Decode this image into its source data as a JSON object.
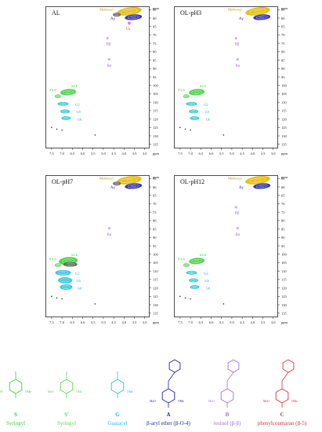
{
  "figure": {
    "colors": {
      "S": "#39d23a",
      "S_prime": "#5bd85b",
      "G": "#25c3dc",
      "A": "#1e1eb4",
      "B": "#a86ed6",
      "C": "#e0303a",
      "methoxyl": "#e6b800",
      "impurity": "#555555"
    },
    "x_axis": {
      "unit": "ppm",
      "ticks": [
        "7.5",
        "7.0",
        "6.5",
        "6.0",
        "5.5",
        "5.0",
        "4.5",
        "4.0",
        "3.5",
        "3.0"
      ]
    },
    "y_axis": {
      "unit": "ppm",
      "ticks": [
        "55",
        "60",
        "65",
        "70",
        "75",
        "80",
        "85",
        "90",
        "95",
        "100",
        "105",
        "110",
        "115",
        "120",
        "125",
        "130",
        "135"
      ]
    },
    "panels": [
      {
        "title": "AL",
        "cross_peak_labels": {
          "methoxyl": "Methoxyl",
          "A": "Aγ",
          "C": "Cγ",
          "B_beta": "Bβ",
          "B_alpha": "Bα",
          "S_prime": "S'2,6",
          "S": "S2,6",
          "G2": "G2",
          "G5": "G5",
          "G6": "G6"
        }
      },
      {
        "title": "OL-pH3",
        "cross_peak_labels": {
          "methoxyl": "Methoxyl",
          "A": "Aγ",
          "B_beta": "Bβ",
          "B_alpha": "Bα",
          "S_prime": "S'2,6",
          "S": "S2,6",
          "G2": "G2",
          "G5": "G5",
          "G6": "G6"
        }
      },
      {
        "title": "OL-pH7",
        "cross_peak_labels": {
          "methoxyl": "Methoxyl",
          "A": "Aγ",
          "B_alpha": "Bα",
          "S_prime": "S'2,6",
          "S": "S2,6",
          "G2": "G2",
          "G5": "G5",
          "G6": "G6"
        }
      },
      {
        "title": "OL-pH12",
        "cross_peak_labels": {
          "methoxyl": "Methoxyl",
          "A": "Aγ",
          "B_beta": "Bβ",
          "B_alpha": "Bα",
          "S_prime": "S'2,6",
          "S": "S2,6",
          "G2": "G2",
          "G5": "G5",
          "G6": "G6"
        }
      }
    ],
    "structures": [
      {
        "letter": "S",
        "name": "Syringyl",
        "color_key": "S"
      },
      {
        "letter": "S'",
        "name": "Syringyl",
        "color_key": "S_prime"
      },
      {
        "letter": "G",
        "name": "Guaiacyl",
        "color_key": "G"
      },
      {
        "letter": "A",
        "name": "β-aryl ether (β-O-4)",
        "color_key": "A"
      },
      {
        "letter": "B",
        "name": "resinol (β-β)",
        "color_key": "B"
      },
      {
        "letter": "C",
        "name": "phenylcoumaran (β-5)",
        "color_key": "C"
      }
    ],
    "structure_text": {
      "ome": "OMe",
      "meo": "MeO"
    }
  }
}
